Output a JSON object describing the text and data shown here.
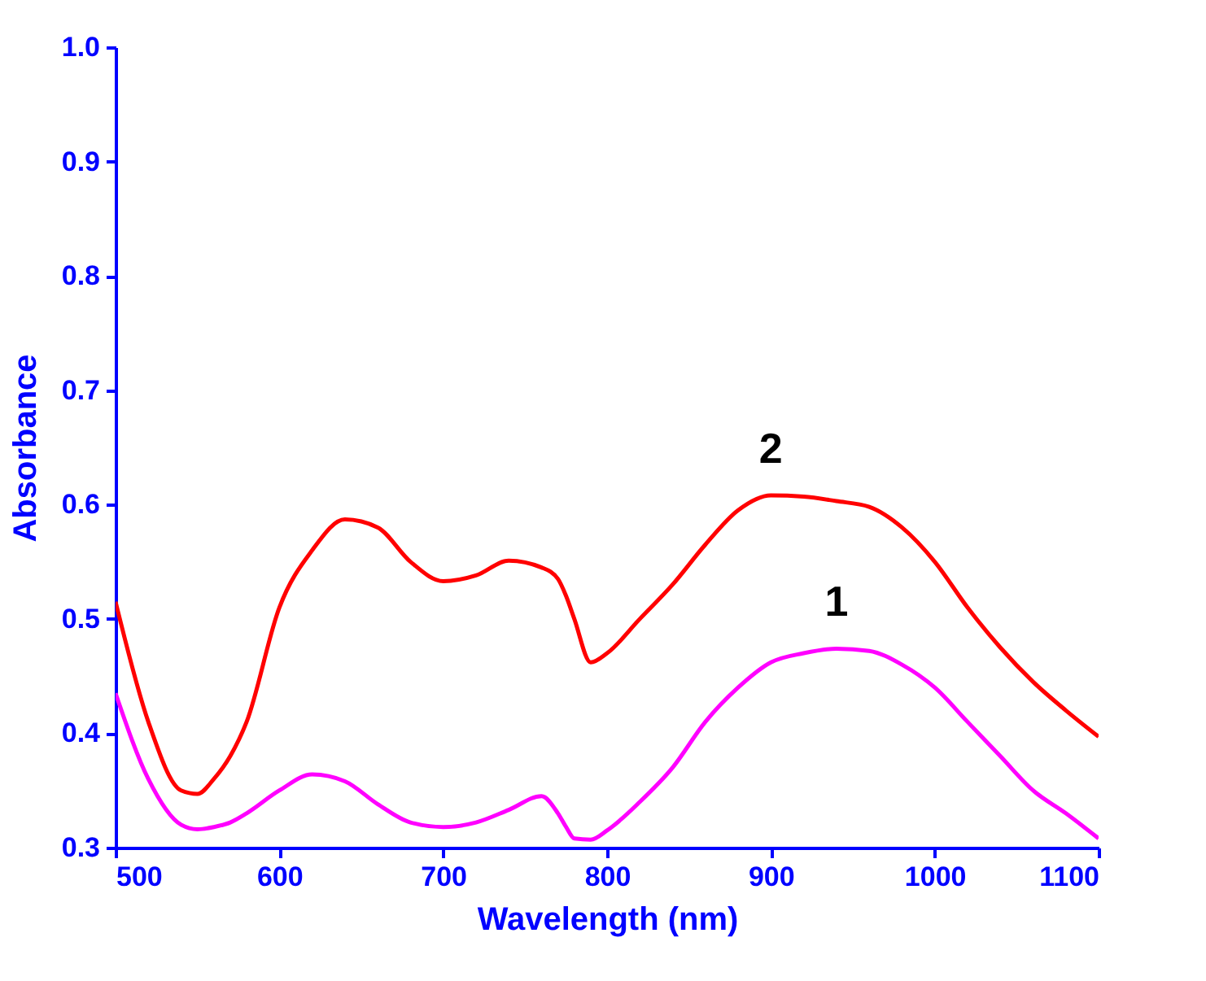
{
  "chart_data": {
    "type": "line",
    "xlabel": "Wavelength (nm)",
    "ylabel": "Absorbance",
    "x": [
      500,
      520,
      540,
      550,
      560,
      570,
      580,
      600,
      620,
      640,
      660,
      680,
      700,
      720,
      740,
      760,
      770,
      775,
      780,
      790,
      800,
      820,
      840,
      860,
      880,
      900,
      920,
      940,
      960,
      980,
      1000,
      1020,
      1040,
      1060,
      1080,
      1100
    ],
    "series": [
      {
        "name": "1",
        "color": "#ff00ff",
        "values": [
          0.435,
          0.36,
          0.32,
          0.316,
          0.318,
          0.322,
          0.33,
          0.35,
          0.364,
          0.358,
          0.338,
          0.322,
          0.318,
          0.322,
          0.333,
          0.345,
          0.33,
          0.318,
          0.308,
          0.307,
          0.315,
          0.34,
          0.37,
          0.41,
          0.44,
          0.462,
          0.47,
          0.474,
          0.472,
          0.46,
          0.44,
          0.41,
          0.38,
          0.35,
          0.33,
          0.308
        ]
      },
      {
        "name": "2",
        "color": "#ff0000",
        "values": [
          0.515,
          0.41,
          0.35,
          0.347,
          0.36,
          0.38,
          0.41,
          0.51,
          0.56,
          0.587,
          0.58,
          0.55,
          0.533,
          0.538,
          0.551,
          0.545,
          0.535,
          0.52,
          0.5,
          0.462,
          0.47,
          0.5,
          0.53,
          0.565,
          0.595,
          0.608,
          0.607,
          0.603,
          0.598,
          0.58,
          0.55,
          0.51,
          0.475,
          0.445,
          0.42,
          0.397
        ]
      }
    ],
    "xlim": [
      500,
      1100
    ],
    "xticks": [
      500,
      600,
      700,
      800,
      900,
      1000,
      1100
    ],
    "ylim": [
      0.3,
      1.0
    ],
    "yticks": [
      0.3,
      0.4,
      0.5,
      0.6,
      0.7,
      0.8,
      0.9,
      {
        "value": 1.0,
        "label": "1.0"
      }
    ],
    "grid": false,
    "legend": false,
    "marker": "none",
    "line_style": "solid"
  }
}
